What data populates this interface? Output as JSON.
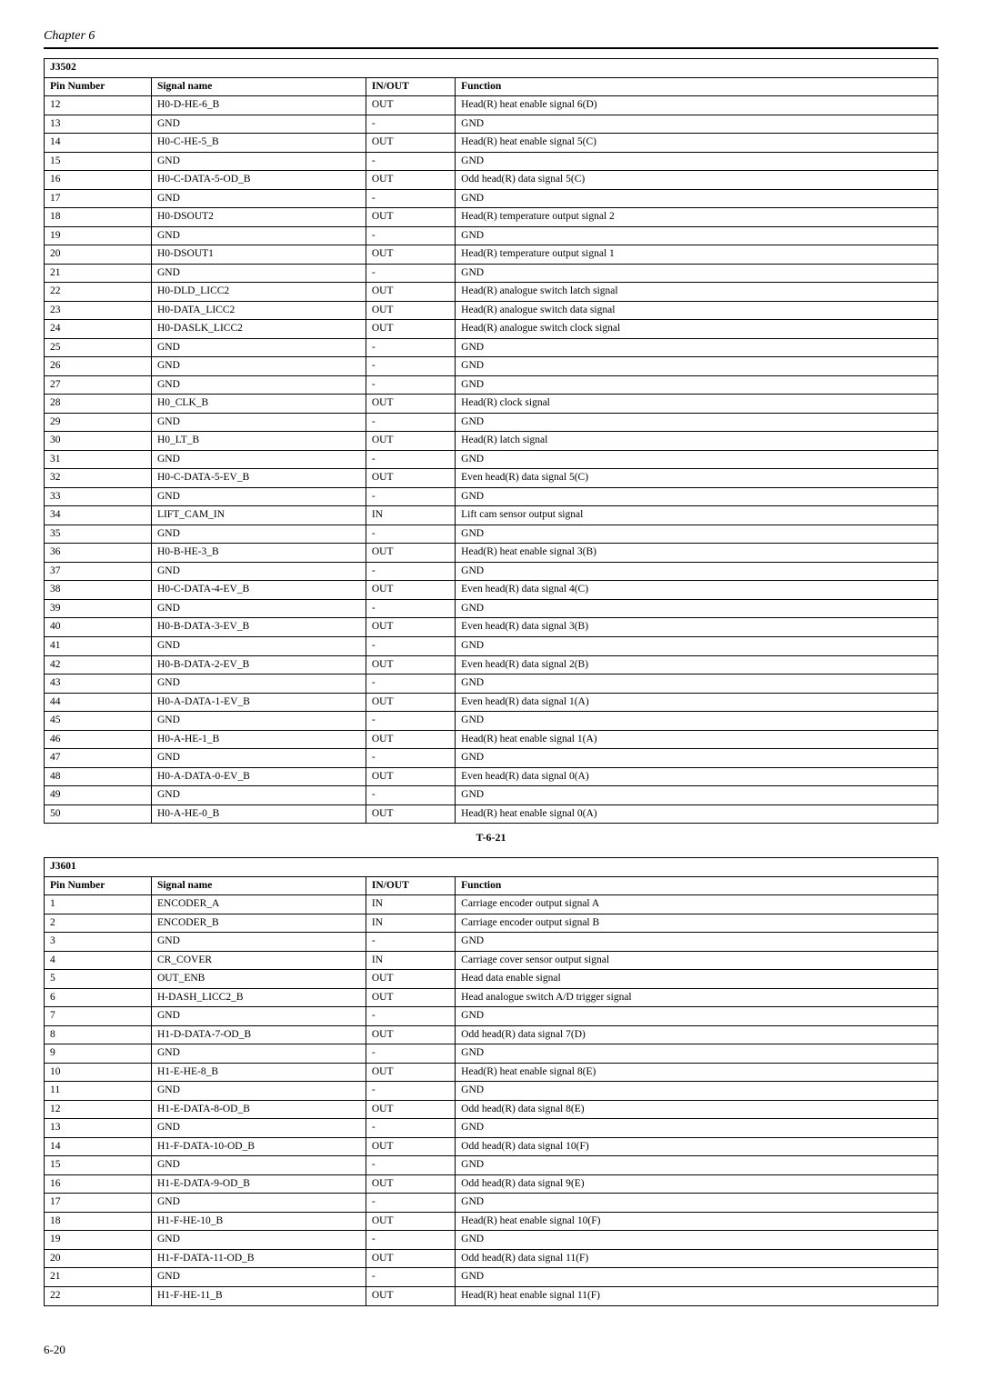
{
  "chapter": "Chapter 6",
  "page_number": "6-20",
  "table1": {
    "code": "J3502",
    "caption": "T-6-21",
    "columns": [
      "Pin Number",
      "Signal name",
      "IN/OUT",
      "Function"
    ],
    "rows": [
      [
        "12",
        "H0-D-HE-6_B",
        "OUT",
        "Head(R) heat enable signal 6(D)"
      ],
      [
        "13",
        "GND",
        "-",
        "GND"
      ],
      [
        "14",
        "H0-C-HE-5_B",
        "OUT",
        "Head(R) heat enable signal 5(C)"
      ],
      [
        "15",
        "GND",
        "-",
        "GND"
      ],
      [
        "16",
        "H0-C-DATA-5-OD_B",
        "OUT",
        "Odd head(R) data signal 5(C)"
      ],
      [
        "17",
        "GND",
        "-",
        "GND"
      ],
      [
        "18",
        "H0-DSOUT2",
        "OUT",
        "Head(R) temperature output signal 2"
      ],
      [
        "19",
        "GND",
        "-",
        "GND"
      ],
      [
        "20",
        "H0-DSOUT1",
        "OUT",
        "Head(R) temperature output signal 1"
      ],
      [
        "21",
        "GND",
        "-",
        "GND"
      ],
      [
        "22",
        "H0-DLD_LICC2",
        "OUT",
        "Head(R) analogue switch latch signal"
      ],
      [
        "23",
        "H0-DATA_LICC2",
        "OUT",
        "Head(R) analogue switch data signal"
      ],
      [
        "24",
        "H0-DASLK_LICC2",
        "OUT",
        "Head(R) analogue switch clock signal"
      ],
      [
        "25",
        "GND",
        "-",
        "GND"
      ],
      [
        "26",
        "GND",
        "-",
        "GND"
      ],
      [
        "27",
        "GND",
        "-",
        "GND"
      ],
      [
        "28",
        "H0_CLK_B",
        "OUT",
        "Head(R) clock signal"
      ],
      [
        "29",
        "GND",
        "-",
        "GND"
      ],
      [
        "30",
        "H0_LT_B",
        "OUT",
        "Head(R) latch signal"
      ],
      [
        "31",
        "GND",
        "-",
        "GND"
      ],
      [
        "32",
        "H0-C-DATA-5-EV_B",
        "OUT",
        "Even head(R) data signal 5(C)"
      ],
      [
        "33",
        "GND",
        "-",
        "GND"
      ],
      [
        "34",
        "LIFT_CAM_IN",
        "IN",
        "Lift cam sensor output signal"
      ],
      [
        "35",
        "GND",
        "-",
        "GND"
      ],
      [
        "36",
        "H0-B-HE-3_B",
        "OUT",
        "Head(R) heat enable signal 3(B)"
      ],
      [
        "37",
        "GND",
        "-",
        "GND"
      ],
      [
        "38",
        "H0-C-DATA-4-EV_B",
        "OUT",
        "Even head(R) data signal 4(C)"
      ],
      [
        "39",
        "GND",
        "-",
        "GND"
      ],
      [
        "40",
        "H0-B-DATA-3-EV_B",
        "OUT",
        "Even head(R) data signal 3(B)"
      ],
      [
        "41",
        "GND",
        "-",
        "GND"
      ],
      [
        "42",
        "H0-B-DATA-2-EV_B",
        "OUT",
        "Even head(R) data signal 2(B)"
      ],
      [
        "43",
        "GND",
        "-",
        "GND"
      ],
      [
        "44",
        "H0-A-DATA-1-EV_B",
        "OUT",
        "Even head(R) data signal 1(A)"
      ],
      [
        "45",
        "GND",
        "-",
        "GND"
      ],
      [
        "46",
        "H0-A-HE-1_B",
        "OUT",
        "Head(R) heat enable signal 1(A)"
      ],
      [
        "47",
        "GND",
        "-",
        "GND"
      ],
      [
        "48",
        "H0-A-DATA-0-EV_B",
        "OUT",
        "Even head(R) data signal 0(A)"
      ],
      [
        "49",
        "GND",
        "-",
        "GND"
      ],
      [
        "50",
        "H0-A-HE-0_B",
        "OUT",
        "Head(R) heat enable signal 0(A)"
      ]
    ]
  },
  "table2": {
    "code": "J3601",
    "columns": [
      "Pin Number",
      "Signal name",
      "IN/OUT",
      "Function"
    ],
    "rows": [
      [
        "1",
        "ENCODER_A",
        "IN",
        "Carriage encoder output signal A"
      ],
      [
        "2",
        "ENCODER_B",
        "IN",
        "Carriage encoder output signal B"
      ],
      [
        "3",
        "GND",
        "-",
        "GND"
      ],
      [
        "4",
        "CR_COVER",
        "IN",
        "Carriage cover sensor output signal"
      ],
      [
        "5",
        "OUT_ENB",
        "OUT",
        "Head data enable signal"
      ],
      [
        "6",
        "H-DASH_LICC2_B",
        "OUT",
        "Head analogue switch A/D trigger signal"
      ],
      [
        "7",
        "GND",
        "-",
        "GND"
      ],
      [
        "8",
        "H1-D-DATA-7-OD_B",
        "OUT",
        "Odd head(R) data signal 7(D)"
      ],
      [
        "9",
        "GND",
        "-",
        "GND"
      ],
      [
        "10",
        "H1-E-HE-8_B",
        "OUT",
        "Head(R) heat enable signal 8(E)"
      ],
      [
        "11",
        "GND",
        "-",
        "GND"
      ],
      [
        "12",
        "H1-E-DATA-8-OD_B",
        "OUT",
        "Odd head(R) data signal 8(E)"
      ],
      [
        "13",
        "GND",
        "-",
        "GND"
      ],
      [
        "14",
        "H1-F-DATA-10-OD_B",
        "OUT",
        "Odd head(R) data signal 10(F)"
      ],
      [
        "15",
        "GND",
        "-",
        "GND"
      ],
      [
        "16",
        "H1-E-DATA-9-OD_B",
        "OUT",
        "Odd head(R) data signal 9(E)"
      ],
      [
        "17",
        "GND",
        "-",
        "GND"
      ],
      [
        "18",
        "H1-F-HE-10_B",
        "OUT",
        "Head(R) heat enable signal 10(F)"
      ],
      [
        "19",
        "GND",
        "-",
        "GND"
      ],
      [
        "20",
        "H1-F-DATA-11-OD_B",
        "OUT",
        "Odd head(R) data signal 11(F)"
      ],
      [
        "21",
        "GND",
        "-",
        "GND"
      ],
      [
        "22",
        "H1-F-HE-11_B",
        "OUT",
        "Head(R) heat enable signal 11(F)"
      ]
    ]
  }
}
